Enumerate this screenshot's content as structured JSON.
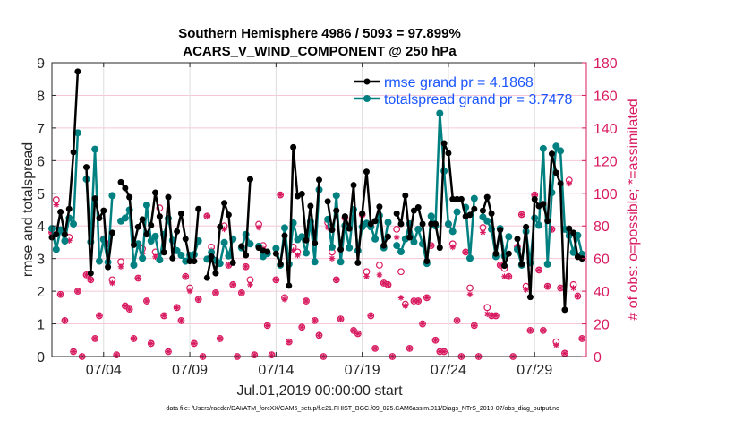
{
  "chart_data": {
    "type": "line",
    "title": [
      "Southern Hemisphere 4986 / 5093 = 97.899%",
      "ACARS_V_WIND_COMPONENT @ 250 hPa"
    ],
    "xlabel": "Jul.01,2019 00:00:00 start",
    "ylabel": "rmse and totalspread",
    "y2label": "# of obs: o=possible; *=assimilated",
    "x_unit": "days since Jul.01,2019 00:00:00, 6-hourly",
    "xlim": [
      0,
      31
    ],
    "ylim": [
      0,
      9
    ],
    "y2lim": [
      0,
      180
    ],
    "x_ticks": [
      3,
      8,
      13,
      18,
      23,
      28
    ],
    "x_tick_labels": [
      "07/04",
      "07/09",
      "07/14",
      "07/19",
      "07/24",
      "07/29"
    ],
    "y_ticks": [
      0,
      1,
      2,
      3,
      4,
      5,
      6,
      7,
      8,
      9
    ],
    "y2_ticks": [
      0,
      20,
      40,
      60,
      80,
      100,
      120,
      140,
      160,
      180
    ],
    "grid": true,
    "legend_placement": "top-right",
    "footer": "data file: /Users/raeder/DAI/ATM_forcXX/CAM6_setup/f.e21.FHIST_BGC.f09_025.CAM6assim.011/Diags_NTrS_2019-07/obs_diag_output.nc",
    "colors": {
      "rmse": "#000000",
      "totalspread": "#008080",
      "obs": "#d81b60",
      "legend_text": "#1a55ff"
    },
    "series": [
      {
        "name": "rmse grand pr = 4.1868",
        "values": [
          3.65,
          3.74,
          4.43,
          3.74,
          4.52,
          6.26,
          8.73,
          null,
          5.8,
          2.55,
          4.84,
          4.24,
          4.47,
          2.74,
          3.79,
          null,
          5.34,
          5.16,
          4.88,
          3.42,
          3.97,
          4.2,
          3.74,
          4.02,
          5.02,
          4.29,
          3.19,
          4.88,
          3.01,
          3.83,
          4.38,
          3.6,
          2.92,
          2.92,
          4.52,
          null,
          2.41,
          3.06,
          2.55,
          3.97,
          4.7,
          4.34,
          2.87,
          null,
          3.38,
          3.1,
          5.43,
          null,
          3.33,
          3.24,
          3.21,
          null,
          3.15,
          2.83,
          3.7,
          2.17,
          6.41,
          4.91,
          4.98,
          3.56,
          4.61,
          3.47,
          5.41,
          null,
          4.75,
          3.88,
          4.47,
          3.28,
          4.29,
          3.92,
          5.25,
          2.87,
          4.38,
          5.66,
          4.06,
          4.15,
          4.59,
          3.4,
          3.67,
          null,
          4.38,
          4.06,
          4.93,
          3.65,
          4.47,
          4.57,
          4.06,
          2.92,
          4.06,
          4.06,
          3.33,
          6.53,
          6.23,
          4.82,
          4.82,
          4.82,
          4.29,
          4.34,
          4.52,
          null,
          4.47,
          4.88,
          4.38,
          3.15,
          3.88,
          2.78,
          3.15,
          null,
          3.6,
          2.83,
          3.97,
          1.82,
          4.82,
          4.61,
          4.67,
          4.15,
          6.21,
          5.63,
          5.3,
          1.43,
          3.92,
          3.79,
          3.05,
          3.0
        ]
      },
      {
        "name": "totalspread grand pr = 3.7478",
        "values": [
          3.92,
          3.28,
          3.88,
          3.54,
          4.24,
          4.06,
          6.85,
          null,
          5.43,
          3.51,
          6.35,
          2.92,
          3.58,
          2.89,
          4.93,
          null,
          4.15,
          4.24,
          4.49,
          2.8,
          3.45,
          3.01,
          4.64,
          3.54,
          3.68,
          2.96,
          3.74,
          4.23,
          3.56,
          3.24,
          3.1,
          2.92,
          3.1,
          3.12,
          3.54,
          null,
          2.98,
          3.19,
          2.94,
          2.85,
          3.49,
          3.08,
          3.6,
          null,
          3.33,
          3.74,
          3.45,
          null,
          3.38,
          3.06,
          3.15,
          null,
          3.31,
          2.8,
          3.94,
          2.83,
          4.09,
          3.58,
          3.67,
          3.17,
          4.13,
          2.9,
          5.11,
          null,
          4.2,
          3.35,
          4.93,
          2.9,
          4.01,
          3.33,
          4.5,
          3.24,
          3.97,
          4.08,
          3.97,
          3.6,
          4.32,
          3.33,
          4.11,
          null,
          3.4,
          3.21,
          3.6,
          4.06,
          3.51,
          3.9,
          3.45,
          2.85,
          4.3,
          4.0,
          7.45,
          5.68,
          4.06,
          3.83,
          4.43,
          null,
          4.57,
          3.01,
          4.84,
          null,
          4.27,
          4.15,
          3.9,
          3.06,
          3.92,
          3.08,
          3.67,
          null,
          3.28,
          2.8,
          3.83,
          2.87,
          4.24,
          4.02,
          6.37,
          2.83,
          5.02,
          6.44,
          6.3,
          3.9,
          3.7,
          3.19,
          3.71,
          3.13
        ]
      },
      {
        "name": "obs possible",
        "axis": "right",
        "values": [
          76,
          96,
          38,
          22,
          73,
          3,
          40,
          0,
          50,
          47,
          11,
          25,
          72,
          69,
          47,
          1,
          58,
          31,
          29,
          11,
          48,
          66,
          34,
          8,
          64,
          91,
          25,
          3,
          71,
          30,
          22,
          49,
          42,
          8,
          35,
          0,
          86,
          67,
          39,
          11,
          80,
          56,
          44,
          0,
          39,
          55,
          47,
          1,
          81,
          68,
          19,
          1,
          47,
          99,
          36,
          9,
          67,
          64,
          18,
          34,
          79,
          22,
          13,
          0,
          82,
          64,
          47,
          23,
          85,
          79,
          16,
          14,
          87,
          52,
          25,
          5,
          56,
          45,
          44,
          0,
          78,
          52,
          32,
          5,
          34,
          34,
          20,
          36,
          68,
          10,
          3,
          3,
          81,
          69,
          22,
          0,
          64,
          42,
          19,
          0,
          79,
          30,
          25,
          25,
          56,
          54,
          49,
          0,
          67,
          87,
          43,
          16,
          99,
          53,
          16,
          43,
          78,
          9,
          42,
          2,
          108,
          44,
          37,
          11
        ]
      },
      {
        "name": "obs assimilated",
        "axis": "right",
        "values": [
          76,
          93,
          38,
          22,
          71,
          3,
          40,
          0,
          50,
          47,
          11,
          25,
          72,
          69,
          45,
          1,
          55,
          31,
          29,
          11,
          48,
          63,
          34,
          8,
          61,
          86,
          25,
          3,
          71,
          30,
          22,
          49,
          40,
          8,
          35,
          0,
          86,
          65,
          39,
          11,
          78,
          56,
          44,
          0,
          39,
          55,
          44,
          1,
          79,
          66,
          19,
          1,
          47,
          99,
          35,
          9,
          65,
          62,
          18,
          34,
          79,
          22,
          13,
          0,
          79,
          60,
          47,
          23,
          85,
          79,
          16,
          14,
          87,
          49,
          25,
          5,
          50,
          45,
          44,
          0,
          73,
          36,
          31,
          5,
          34,
          34,
          20,
          36,
          68,
          10,
          3,
          3,
          81,
          67,
          22,
          0,
          64,
          38,
          19,
          0,
          76,
          26,
          25,
          25,
          56,
          49,
          49,
          0,
          67,
          87,
          41,
          16,
          99,
          53,
          16,
          43,
          78,
          7,
          42,
          2,
          106,
          42,
          37,
          11
        ]
      }
    ]
  }
}
